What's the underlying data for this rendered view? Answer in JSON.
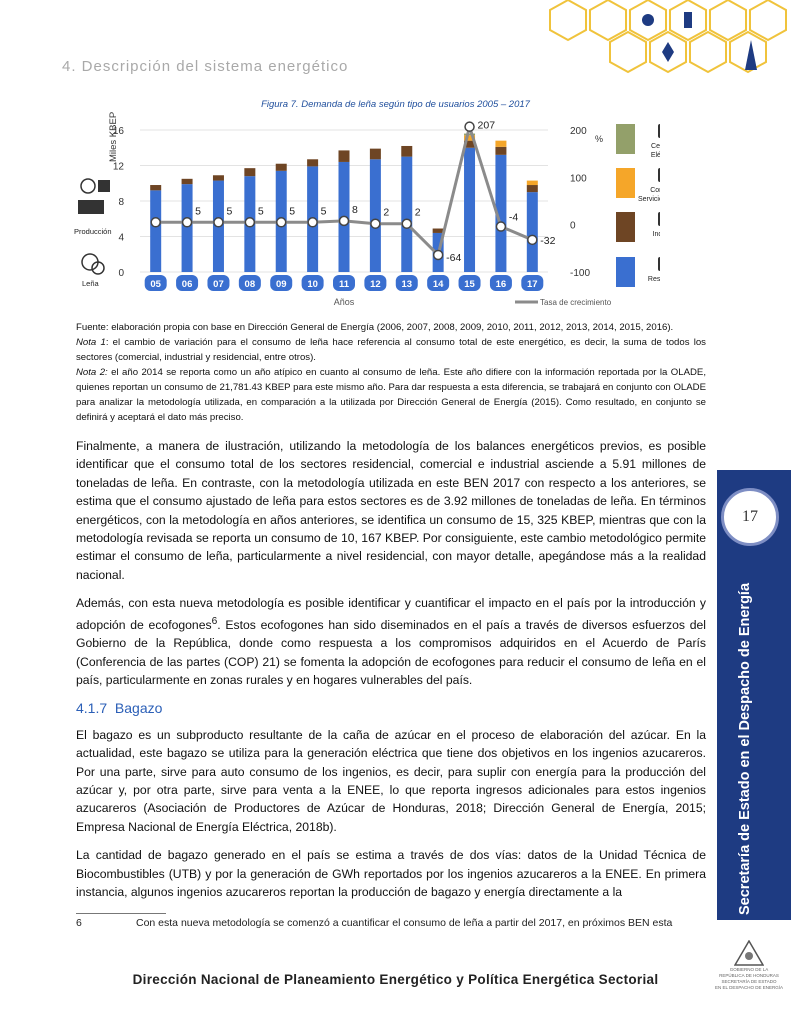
{
  "section_title": "4. Descripción del sistema energético",
  "figure_caption": {
    "prefix": "Figura 7. ",
    "text": "Demanda de leña según tipo de usuarios 2005 – 2017"
  },
  "chart_data": {
    "type": "bar",
    "stacked": true,
    "title": "Figura 7. Demanda de leña según tipo de usuarios 2005 – 2017",
    "xlabel": "Años",
    "ylabel": "Miles KBEP",
    "y2label": "%",
    "categories": [
      "05",
      "06",
      "07",
      "08",
      "09",
      "10",
      "11",
      "12",
      "13",
      "14",
      "15",
      "16",
      "17"
    ],
    "ylim": [
      0,
      16
    ],
    "yticks": [
      0,
      4,
      8,
      12,
      16
    ],
    "y2lim": [
      -100,
      200
    ],
    "y2ticks": [
      -100,
      0,
      100,
      200
    ],
    "series": [
      {
        "name": "Residencial",
        "color": "#3a6fd0",
        "values": [
          9.2,
          9.9,
          10.3,
          10.8,
          11.4,
          11.9,
          12.4,
          12.7,
          13.0,
          4.4,
          14.0,
          13.2,
          9.0
        ]
      },
      {
        "name": "Industria",
        "color": "#6e4524",
        "values": [
          0.6,
          0.6,
          0.6,
          0.9,
          0.8,
          0.8,
          1.3,
          1.2,
          1.2,
          0.5,
          0.8,
          0.9,
          0.8
        ]
      },
      {
        "name": "Comercial Servicios públicos",
        "color": "#f5a629",
        "values": [
          0,
          0,
          0,
          0,
          0,
          0,
          0,
          0,
          0,
          0,
          0.6,
          0.7,
          0.5
        ]
      },
      {
        "name": "Centrales Eléctricas",
        "color": "#93a06a",
        "values": [
          0,
          0,
          0,
          0,
          0,
          0,
          0,
          0,
          0,
          0,
          0.2,
          0,
          0
        ]
      }
    ],
    "growth_series": {
      "name": "Tasa de crecimiento",
      "color": "#8b8b8b",
      "values": [
        5,
        5,
        5,
        5,
        5,
        5,
        8,
        2,
        2,
        -64,
        207,
        -4,
        -32
      ],
      "labels": [
        "",
        "5",
        "5",
        "5",
        "5",
        "5",
        "8",
        "2",
        "2",
        "-64",
        "207",
        "-4",
        "-32"
      ]
    },
    "legend": [
      "Centrales Eléctricas",
      "Comercial Servicios públicos",
      "Industria",
      "Residencial"
    ],
    "legend_placement": "right",
    "side_labels": {
      "top": "Producción",
      "bottom": "Leña"
    },
    "grid": true
  },
  "notes": {
    "source_prefix": "Fuente: elaboración propia con base en ",
    "source_bold": "Dirección General de Energía",
    "source_suffix": " (2006, 2007, 2008, 2009, 2010, 2011, 2012, 2013, 2014, 2015, 2016).",
    "note1_label": "Nota 1",
    "note1_text": ": el cambio de variación para el consumo de leña hace referencia al consumo total de este energético, es decir, la suma de todos los sectores (comercial, industrial y residencial, entre otros).",
    "note2_label": "Nota 2:",
    "note2_text": " el año 2014 se reporta como un año atípico en cuanto al consumo de leña. Este año difiere con la información reportada por la OLADE, quienes reportan un consumo de 21,781.43 KBEP para este mismo año. Para dar respuesta a esta diferencia, se trabajará en conjunto con OLADE para analizar la metodología utilizada, en comparación a la utilizada por Dirección General de Energía (2015). Como resultado, en conjunto se definirá y aceptará el dato más preciso."
  },
  "paragraphs": {
    "p1": "Finalmente, a manera de ilustración, utilizando la metodología de los balances energéticos previos, es posible identificar que el consumo total de los sectores residencial, comercial e industrial asciende a 5.91 millones de toneladas de leña. En contraste, con la metodología utilizada en este BEN 2017 con respecto a los anteriores, se estima que el consumo ajustado de leña para estos sectores es de 3.92 millones de toneladas de leña. En términos energéticos, con la metodología en años anteriores, se identifica un consumo de 15, 325 KBEP, mientras que con la metodología revisada se reporta un consumo de 10, 167 KBEP. Por consiguiente, este cambio metodológico permite estimar el consumo de leña, particularmente a nivel residencial, con mayor detalle, apegándose más a la realidad nacional.",
    "p2_before": "Además, con esta nueva metodología es posible identificar y cuantificar el impacto en el país por la introducción y adopción de ecofogones",
    "p2_sup": "6",
    "p2_after": ". Estos ecofogones han sido diseminados en el país a través de diversos esfuerzos del Gobierno de la República, donde como respuesta a los compromisos adquiridos en el Acuerdo de París (Conferencia de las partes (COP) 21) se fomenta la adopción de ecofogones para reducir el consumo de leña en el país, particularmente en zonas rurales y en hogares vulnerables del país.",
    "subhead_num": "4.1.7",
    "subhead_first": "B",
    "subhead_rest": "agazo",
    "p3": "El bagazo es un subproducto resultante de la caña de azúcar en el proceso de elaboración del azúcar. En la actualidad, este bagazo se utiliza para la generación eléctrica que tiene dos objetivos en los ingenios azucareros. Por una parte, sirve para auto consumo de los ingenios, es decir, para suplir con energía para la producción del azúcar y, por otra parte, sirve para venta a la ENEE, lo que reporta ingresos adicionales para estos ingenios azucareros (Asociación de Productores de Azúcar de Honduras, 2018; Dirección General de Energía, 2015; Empresa Nacional de Energía Eléctrica, 2018b).",
    "p4": "La cantidad de bagazo generado en el país se estima a través de dos vías: datos de la Unidad Técnica de Biocombustibles (UTB) y por la generación de GWh reportados por los ingenios azucareros a la ENEE. En primera instancia, algunos ingenios azucareros reportan la producción de bagazo y energía directamente a la"
  },
  "footnote": {
    "number": "6",
    "text": "Con esta nueva metodología se comenzó a cuantificar el consumo de leña a partir del 2017, en próximos BEN esta"
  },
  "footer": "Dirección Nacional de Planeamiento Energético y Política Energética Sectorial",
  "sidebar": {
    "title": "Secretaría de Estado en el Despacho de Energía",
    "page_number": "17"
  },
  "seal": {
    "line1": "GOBIERNO DE LA",
    "line2": "REPÚBLICA DE HONDURAS",
    "line3": "SECRETARÍA DE ESTADO",
    "line4": "EN EL DESPACHO DE ENERGÍA"
  }
}
